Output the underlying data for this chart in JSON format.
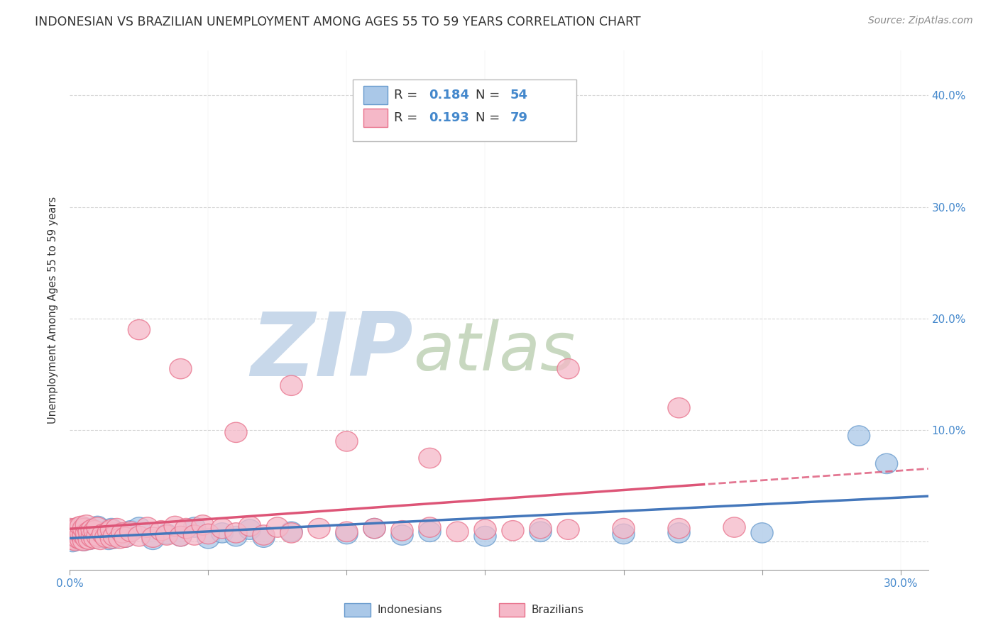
{
  "title": "INDONESIAN VS BRAZILIAN UNEMPLOYMENT AMONG AGES 55 TO 59 YEARS CORRELATION CHART",
  "source": "Source: ZipAtlas.com",
  "ylabel": "Unemployment Among Ages 55 to 59 years",
  "xlim": [
    0.0,
    0.31
  ],
  "ylim": [
    -0.025,
    0.44
  ],
  "xticks": [
    0.0,
    0.05,
    0.1,
    0.15,
    0.2,
    0.25,
    0.3
  ],
  "yticks": [
    0.0,
    0.1,
    0.2,
    0.3,
    0.4
  ],
  "legend_R_ind": "0.184",
  "legend_N_ind": "54",
  "legend_R_bra": "0.193",
  "legend_N_bra": "79",
  "blue_scatter_face": "#aac8e8",
  "blue_scatter_edge": "#6699cc",
  "pink_scatter_face": "#f5b8c8",
  "pink_scatter_edge": "#e8708a",
  "blue_line_color": "#4477bb",
  "pink_line_color": "#dd5577",
  "watermark_zip_color": "#c8d8ea",
  "watermark_atlas_color": "#c8d8c0",
  "grid_color": "#cccccc",
  "axis_label_color": "#4488cc",
  "text_color": "#333333",
  "ind_x": [
    0.0,
    0.0,
    0.001,
    0.001,
    0.002,
    0.002,
    0.002,
    0.003,
    0.003,
    0.004,
    0.004,
    0.005,
    0.005,
    0.005,
    0.006,
    0.007,
    0.007,
    0.008,
    0.008,
    0.009,
    0.01,
    0.01,
    0.012,
    0.013,
    0.014,
    0.015,
    0.015,
    0.016,
    0.017,
    0.018,
    0.02,
    0.022,
    0.025,
    0.03,
    0.035,
    0.04,
    0.045,
    0.05,
    0.055,
    0.06,
    0.065,
    0.07,
    0.08,
    0.1,
    0.11,
    0.12,
    0.13,
    0.15,
    0.17,
    0.2,
    0.22,
    0.25,
    0.285,
    0.295
  ],
  "ind_y": [
    0.005,
    0.01,
    0.0,
    0.005,
    0.003,
    0.007,
    0.012,
    0.002,
    0.008,
    0.004,
    0.01,
    0.001,
    0.006,
    0.013,
    0.003,
    0.002,
    0.009,
    0.005,
    0.011,
    0.003,
    0.007,
    0.014,
    0.004,
    0.009,
    0.002,
    0.005,
    0.012,
    0.003,
    0.008,
    0.006,
    0.004,
    0.01,
    0.013,
    0.002,
    0.007,
    0.005,
    0.013,
    0.003,
    0.008,
    0.005,
    0.011,
    0.004,
    0.009,
    0.007,
    0.012,
    0.006,
    0.009,
    0.005,
    0.009,
    0.007,
    0.008,
    0.008,
    0.095,
    0.07
  ],
  "bra_x": [
    0.0,
    0.0,
    0.0,
    0.001,
    0.001,
    0.001,
    0.002,
    0.002,
    0.002,
    0.003,
    0.003,
    0.003,
    0.004,
    0.004,
    0.004,
    0.005,
    0.005,
    0.005,
    0.006,
    0.006,
    0.006,
    0.007,
    0.007,
    0.008,
    0.008,
    0.009,
    0.009,
    0.01,
    0.01,
    0.011,
    0.012,
    0.013,
    0.014,
    0.015,
    0.015,
    0.016,
    0.017,
    0.018,
    0.019,
    0.02,
    0.022,
    0.025,
    0.028,
    0.03,
    0.033,
    0.035,
    0.038,
    0.04,
    0.042,
    0.045,
    0.048,
    0.05,
    0.055,
    0.06,
    0.065,
    0.07,
    0.075,
    0.08,
    0.09,
    0.1,
    0.11,
    0.12,
    0.13,
    0.14,
    0.15,
    0.16,
    0.17,
    0.18,
    0.2,
    0.22,
    0.24,
    0.025,
    0.04,
    0.06,
    0.08,
    0.1,
    0.13,
    0.18,
    0.22
  ],
  "bra_y": [
    0.003,
    0.007,
    0.012,
    0.002,
    0.006,
    0.011,
    0.001,
    0.005,
    0.01,
    0.003,
    0.008,
    0.013,
    0.002,
    0.007,
    0.014,
    0.001,
    0.006,
    0.012,
    0.003,
    0.008,
    0.015,
    0.002,
    0.009,
    0.004,
    0.011,
    0.003,
    0.01,
    0.005,
    0.013,
    0.002,
    0.007,
    0.004,
    0.009,
    0.003,
    0.011,
    0.005,
    0.012,
    0.003,
    0.008,
    0.004,
    0.009,
    0.005,
    0.013,
    0.004,
    0.01,
    0.006,
    0.014,
    0.005,
    0.012,
    0.006,
    0.015,
    0.007,
    0.012,
    0.008,
    0.014,
    0.006,
    0.013,
    0.008,
    0.012,
    0.009,
    0.012,
    0.01,
    0.013,
    0.009,
    0.011,
    0.01,
    0.012,
    0.011,
    0.012,
    0.012,
    0.013,
    0.19,
    0.155,
    0.098,
    0.14,
    0.09,
    0.075,
    0.155,
    0.12
  ]
}
